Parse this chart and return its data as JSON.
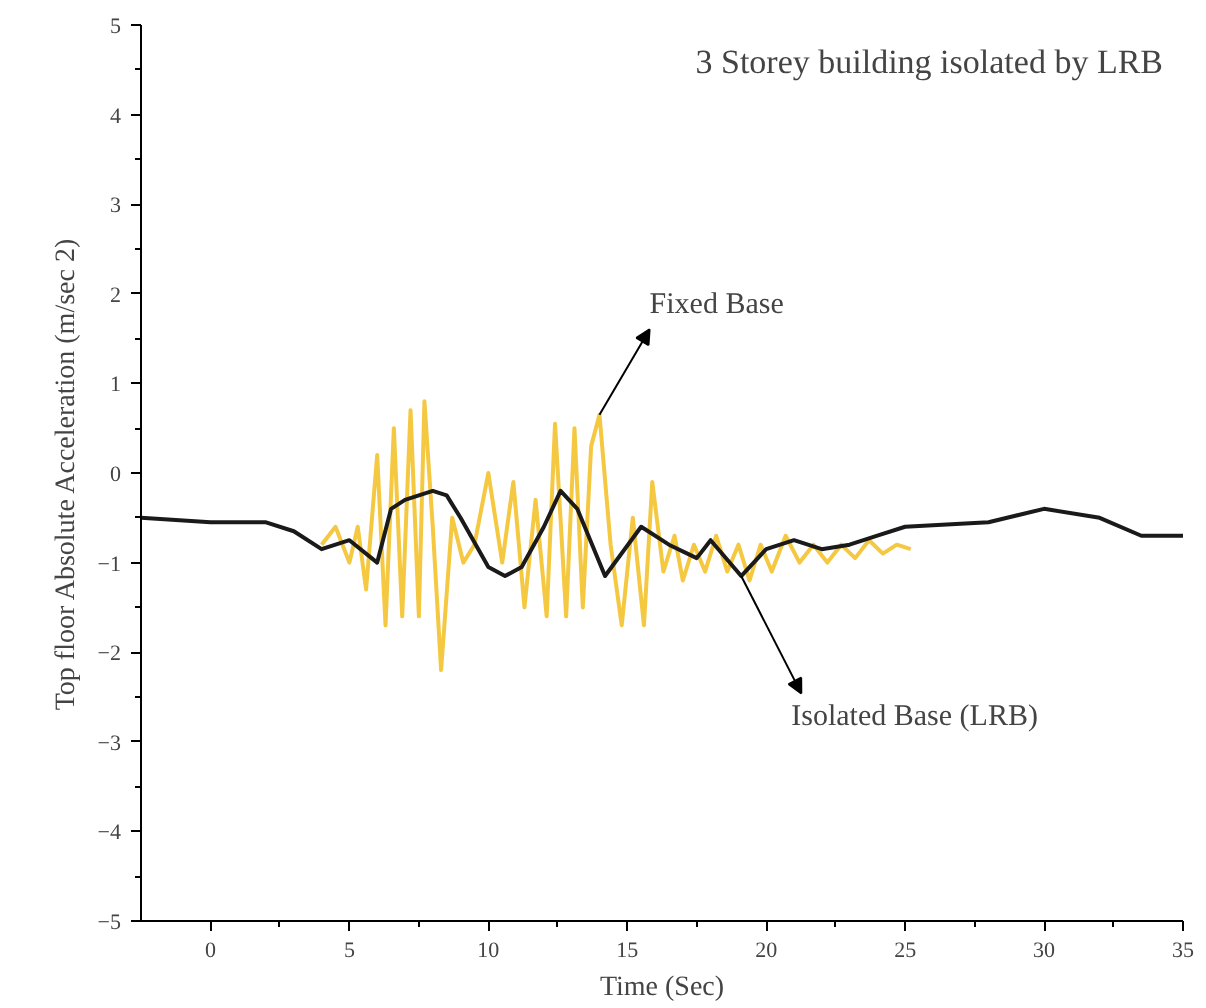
{
  "chart_data": {
    "type": "line",
    "title": "3 Storey building isolated by LRB",
    "xlabel": "Time (Sec)",
    "ylabel": "Top floor Absolute Acceleration (m/sec 2)",
    "xlim": [
      -2.5,
      35
    ],
    "ylim": [
      -5,
      5
    ],
    "xticks": [
      0,
      5,
      10,
      15,
      20,
      25,
      30,
      35
    ],
    "yticks": [
      -5,
      -4,
      -3,
      -2,
      -1,
      0,
      1,
      2,
      3,
      4,
      5
    ],
    "grid": false,
    "marker": "none",
    "line_style": "solid",
    "series": [
      {
        "color": "#f5c842",
        "x": [
          4.0,
          4.5,
          5.0,
          5.3,
          5.6,
          6.0,
          6.3,
          6.6,
          6.9,
          7.2,
          7.5,
          7.7,
          8.0,
          8.3,
          8.7,
          9.1,
          9.5,
          10.0,
          10.5,
          10.9,
          11.3,
          11.7,
          12.1,
          12.4,
          12.8,
          13.1,
          13.4,
          13.7,
          14.0,
          14.4,
          14.8,
          15.2,
          15.6,
          15.9,
          16.3,
          16.7,
          17.0,
          17.4,
          17.8,
          18.2,
          18.6,
          19.0,
          19.4,
          19.8,
          20.2,
          20.7,
          21.2,
          21.7,
          22.2,
          22.7,
          23.2,
          23.7,
          24.2,
          24.7,
          25.2
        ],
        "values": [
          -0.8,
          -0.6,
          -1.0,
          -0.6,
          -1.3,
          0.2,
          -1.7,
          0.5,
          -1.6,
          0.7,
          -1.6,
          0.8,
          -0.6,
          -2.2,
          -0.5,
          -1.0,
          -0.8,
          0.0,
          -1.0,
          -0.1,
          -1.5,
          -0.3,
          -1.6,
          0.55,
          -1.6,
          0.5,
          -1.5,
          0.3,
          0.65,
          -0.8,
          -1.7,
          -0.5,
          -1.7,
          -0.1,
          -1.1,
          -0.7,
          -1.2,
          -0.8,
          -1.1,
          -0.7,
          -1.1,
          -0.8,
          -1.2,
          -0.8,
          -1.1,
          -0.7,
          -1.0,
          -0.8,
          -1.0,
          -0.8,
          -0.95,
          -0.75,
          -0.9,
          -0.8,
          -0.85
        ]
      },
      {
        "color": "#1a1a1a",
        "x": [
          -2.5,
          0,
          2,
          3,
          4,
          5,
          6,
          6.5,
          7,
          8,
          8.5,
          9,
          10,
          10.6,
          11.2,
          12,
          12.6,
          13.2,
          14.2,
          15.5,
          16.5,
          17.5,
          18,
          19.1,
          20,
          21,
          22,
          23,
          24,
          25,
          28,
          30,
          32,
          33.5,
          35
        ],
        "values": [
          -0.5,
          -0.55,
          -0.55,
          -0.65,
          -0.85,
          -0.75,
          -1.0,
          -0.4,
          -0.3,
          -0.2,
          -0.25,
          -0.5,
          -1.05,
          -1.15,
          -1.05,
          -0.6,
          -0.2,
          -0.4,
          -1.15,
          -0.6,
          -0.8,
          -0.95,
          -0.75,
          -1.15,
          -0.85,
          -0.75,
          -0.85,
          -0.8,
          -0.7,
          -0.6,
          -0.55,
          -0.4,
          -0.5,
          -0.7,
          -0.7
        ]
      }
    ],
    "annotations": [
      {
        "text": "Fixed Base",
        "x": 14.0,
        "y": 0.65
      },
      {
        "text": "Isolated Base (LRB)",
        "x": 19.1,
        "y": -1.15
      }
    ]
  }
}
